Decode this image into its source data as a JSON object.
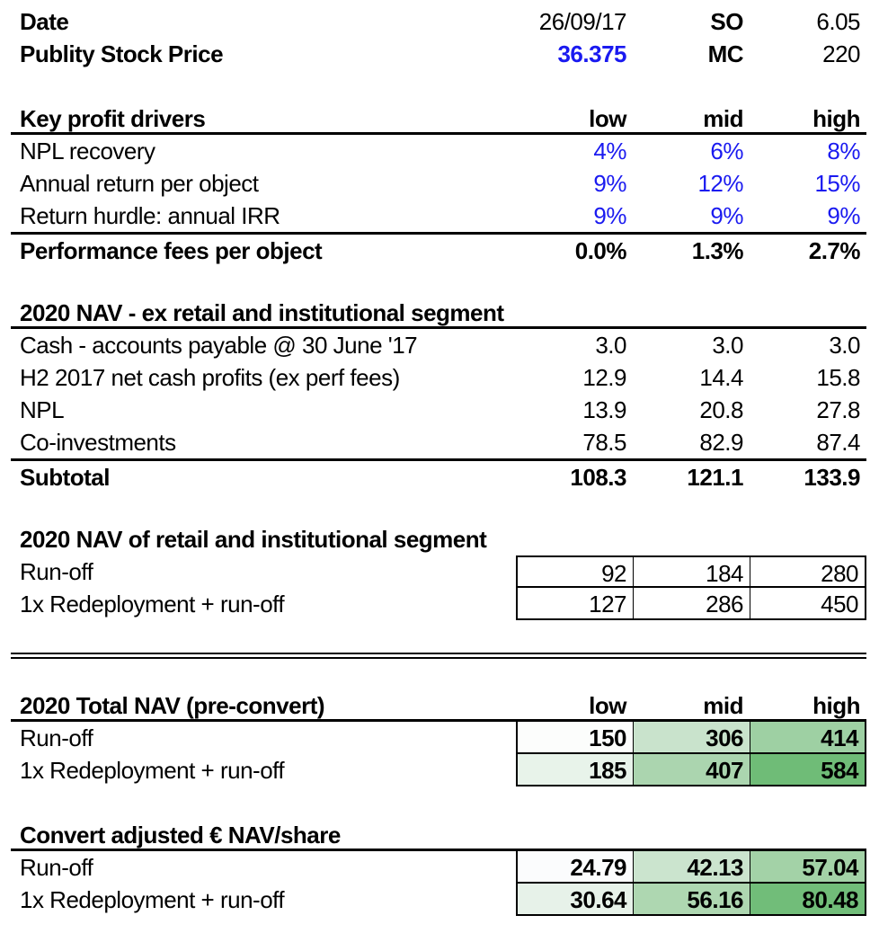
{
  "palette": {
    "input_blue": "#1a1af0",
    "border_black": "#000000"
  },
  "header": {
    "date_label": "Date",
    "date_value": "26/09/17",
    "so_label": "SO",
    "so_value": "6.05",
    "stock_label": "Publity Stock Price",
    "stock_value": "36.375",
    "mc_label": "MC",
    "mc_value": "220"
  },
  "key_profit": {
    "title": "Key profit drivers",
    "col_headers": [
      "low",
      "mid",
      "high"
    ],
    "rows": [
      {
        "label": "NPL recovery",
        "values": [
          "4%",
          "6%",
          "8%"
        ]
      },
      {
        "label": "Annual return per object",
        "values": [
          "9%",
          "12%",
          "15%"
        ]
      },
      {
        "label": "Return hurdle: annual IRR",
        "values": [
          "9%",
          "9%",
          "9%"
        ]
      }
    ],
    "total": {
      "label": "Performance fees per object",
      "values": [
        "0.0%",
        "1.3%",
        "2.7%"
      ]
    }
  },
  "nav_ex_retail": {
    "title": "2020 NAV - ex retail and institutional segment",
    "rows": [
      {
        "label": "Cash - accounts payable @ 30 June '17",
        "values": [
          "3.0",
          "3.0",
          "3.0"
        ]
      },
      {
        "label": "H2 2017 net cash profits (ex perf fees)",
        "values": [
          "12.9",
          "14.4",
          "15.8"
        ]
      },
      {
        "label": "NPL",
        "values": [
          "13.9",
          "20.8",
          "27.8"
        ]
      },
      {
        "label": "Co-investments",
        "values": [
          "78.5",
          "82.9",
          "87.4"
        ]
      }
    ],
    "total": {
      "label": "Subtotal",
      "values": [
        "108.3",
        "121.1",
        "133.9"
      ]
    }
  },
  "nav_retail": {
    "title": "2020 NAV of retail and institutional segment",
    "rows": [
      {
        "label": "Run-off",
        "values": [
          "92",
          "184",
          "280"
        ]
      },
      {
        "label": "1x Redeployment + run-off",
        "values": [
          "127",
          "286",
          "450"
        ]
      }
    ]
  },
  "total_nav": {
    "title": "2020 Total NAV (pre-convert)",
    "col_headers": [
      "low",
      "mid",
      "high"
    ],
    "rows": [
      {
        "label": "Run-off",
        "values": [
          "150",
          "306",
          "414"
        ],
        "colors": [
          "#fcfdfc",
          "#c9e3cc",
          "#9ed0a3"
        ]
      },
      {
        "label": "1x Redeployment + run-off",
        "values": [
          "185",
          "407",
          "584"
        ],
        "colors": [
          "#e8f3ea",
          "#abd5af",
          "#6fbc77"
        ]
      }
    ]
  },
  "convert_nav": {
    "title": "Convert adjusted € NAV/share",
    "rows": [
      {
        "label": "Run-off",
        "values": [
          "24.79",
          "42.13",
          "57.04"
        ],
        "colors": [
          "#fbfcfd",
          "#cbe4ce",
          "#a3d2a7"
        ]
      },
      {
        "label": "1x Redeployment + run-off",
        "values": [
          "30.64",
          "56.16",
          "80.48"
        ],
        "colors": [
          "#e7f2e9",
          "#aed7b1",
          "#71bd79"
        ]
      }
    ]
  }
}
